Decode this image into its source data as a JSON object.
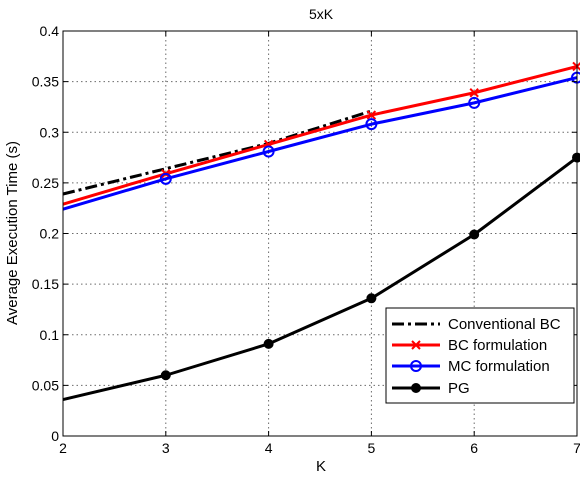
{
  "chart_data": {
    "type": "line",
    "title": "5xK",
    "xlabel": "K",
    "ylabel": "Average Execution Time (s)",
    "xlim": [
      2,
      7
    ],
    "ylim": [
      0,
      0.4
    ],
    "x_ticks": [
      "2",
      "3",
      "4",
      "5",
      "6",
      "7"
    ],
    "y_ticks": [
      "0",
      "0.05",
      "0.1",
      "0.15",
      "0.2",
      "0.25",
      "0.3",
      "0.35",
      "0.4"
    ],
    "grid": true,
    "legend_position": "bottom-right",
    "series": [
      {
        "name": "Conventional BC",
        "color": "#000000",
        "line_style": "dash-dot",
        "marker": "none",
        "points": [
          [
            2,
            0.239
          ],
          [
            3,
            0.264
          ],
          [
            4,
            0.289
          ],
          [
            5,
            0.321
          ]
        ]
      },
      {
        "name": "BC formulation",
        "color": "#ff0000",
        "line_style": "solid",
        "marker": "x",
        "points": [
          [
            2,
            0.229
          ],
          [
            3,
            0.259
          ],
          [
            4,
            0.288
          ],
          [
            5,
            0.317
          ],
          [
            6,
            0.339
          ],
          [
            7,
            0.365
          ]
        ]
      },
      {
        "name": "MC formulation",
        "color": "#0000ff",
        "line_style": "solid",
        "marker": "circle",
        "points": [
          [
            2,
            0.224
          ],
          [
            3,
            0.254
          ],
          [
            4,
            0.281
          ],
          [
            5,
            0.308
          ],
          [
            6,
            0.329
          ],
          [
            7,
            0.354
          ]
        ]
      },
      {
        "name": "PG",
        "color": "#000000",
        "line_style": "solid",
        "marker": "filled-circle",
        "points": [
          [
            2,
            0.036
          ],
          [
            3,
            0.06
          ],
          [
            4,
            0.091
          ],
          [
            5,
            0.136
          ],
          [
            6,
            0.199
          ],
          [
            7,
            0.275
          ]
        ]
      }
    ]
  }
}
